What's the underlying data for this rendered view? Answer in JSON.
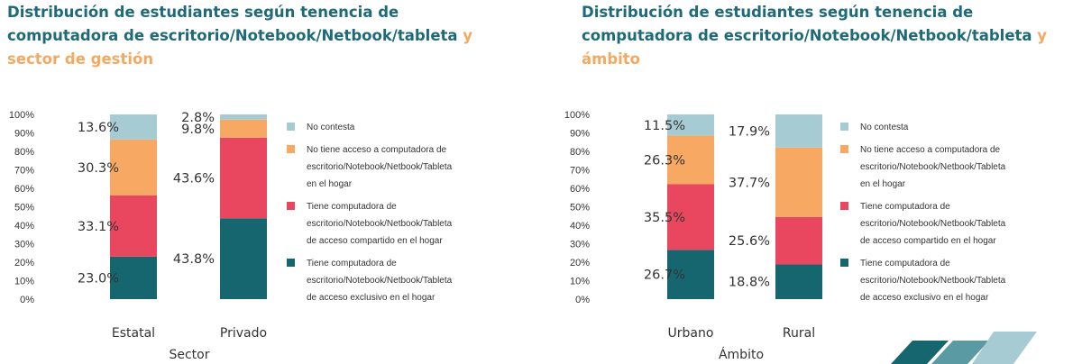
{
  "colors": {
    "no_contesta": "#a7cbd2",
    "no_tiene": "#f7a963",
    "compartido": "#e9475f",
    "exclusivo": "#16666f"
  },
  "chart_data": [
    {
      "type": "bar",
      "stacked": true,
      "title_main": "Distribución de estudiantes según tenencia de computadora de escritorio/Notebook/Netbook/tableta",
      "title_accent": "y sector de gestión",
      "xlabel": "Sector",
      "ylabel": "",
      "ylim": [
        0,
        100
      ],
      "yticks": [
        "0%",
        "10%",
        "20%",
        "30%",
        "40%",
        "50%",
        "60%",
        "70%",
        "80%",
        "90%",
        "100%"
      ],
      "categories": [
        "Estatal",
        "Privado"
      ],
      "series": [
        {
          "name": "Tiene computadora de escritorio/Notebook/Netbook/Tableta de acceso exclusivo en el hogar",
          "key": "exclusivo",
          "values": [
            23.0,
            43.8
          ],
          "labels": [
            "23.0%",
            "43.8%"
          ]
        },
        {
          "name": "Tiene computadora de escritorio/Notebook/Netbook/Tableta de acceso compartido en el hogar",
          "key": "compartido",
          "values": [
            33.1,
            43.6
          ],
          "labels": [
            "33.1%",
            "43.6%"
          ]
        },
        {
          "name": "No tiene acceso a computadora de escritorio/Notebook/Netbook/Tableta en el hogar",
          "key": "no_tiene",
          "values": [
            30.3,
            9.8
          ],
          "labels": [
            "30.3%",
            "9.8%"
          ]
        },
        {
          "name": "No contesta",
          "key": "no_contesta",
          "values": [
            13.6,
            2.8
          ],
          "labels": [
            "13.6%",
            "2.8%"
          ]
        }
      ],
      "legend": [
        {
          "key": "no_contesta",
          "lines": [
            "No contesta"
          ]
        },
        {
          "key": "no_tiene",
          "lines": [
            "No tiene acceso a computadora de",
            "escritorio/Notebook/Netbook/Tableta",
            "en el hogar"
          ]
        },
        {
          "key": "compartido",
          "lines": [
            "Tiene computadora de",
            "escritorio/Notebook/Netbook/Tableta",
            "de acceso compartido en el hogar"
          ]
        },
        {
          "key": "exclusivo",
          "lines": [
            "Tiene computadora de",
            "escritorio/Notebook/Netbook/Tableta",
            "de acceso exclusivo en el hogar"
          ]
        }
      ],
      "legend_placement": "right",
      "grid": false
    },
    {
      "type": "bar",
      "stacked": true,
      "title_main": "Distribución de estudiantes según tenencia de computadora de escritorio/Notebook/Netbook/tableta",
      "title_accent": "y ámbito",
      "xlabel": "Ámbito",
      "ylabel": "",
      "ylim": [
        0,
        100
      ],
      "yticks": [
        "0%",
        "10%",
        "20%",
        "30%",
        "40%",
        "50%",
        "60%",
        "70%",
        "80%",
        "90%",
        "100%"
      ],
      "categories": [
        "Urbano",
        "Rural"
      ],
      "series": [
        {
          "name": "Tiene computadora de escritorio/Notebook/Netbook/Tableta de acceso exclusivo en el hogar",
          "key": "exclusivo",
          "values": [
            26.7,
            18.8
          ],
          "labels": [
            "26.7%",
            "18.8%"
          ]
        },
        {
          "name": "Tiene computadora de escritorio/Notebook/Netbook/Tableta de acceso compartido en el hogar",
          "key": "compartido",
          "values": [
            35.5,
            25.6
          ],
          "labels": [
            "35.5%",
            "25.6%"
          ]
        },
        {
          "name": "No tiene acceso a computadora de escritorio/Notebook/Netbook/Tableta en el hogar",
          "key": "no_tiene",
          "values": [
            26.3,
            37.7
          ],
          "labels": [
            "26.3%",
            "37.7%"
          ]
        },
        {
          "name": "No contesta",
          "key": "no_contesta",
          "values": [
            11.5,
            17.9
          ],
          "labels": [
            "11.5%",
            "17.9%"
          ]
        }
      ],
      "legend": [
        {
          "key": "no_contesta",
          "lines": [
            "No contesta"
          ]
        },
        {
          "key": "no_tiene",
          "lines": [
            "No tiene acceso a computadora de",
            "escritorio/Notebook/Netbook/Tableta",
            "en el hogar"
          ]
        },
        {
          "key": "compartido",
          "lines": [
            "Tiene computadora de",
            "escritorio/Notebook/Netbook/Tableta",
            "de acceso compartido en el hogar"
          ]
        },
        {
          "key": "exclusivo",
          "lines": [
            "Tiene computadora de",
            "escritorio/Notebook/Netbook/Tableta",
            "de acceso exclusivo en el hogar"
          ]
        }
      ],
      "legend_placement": "right",
      "grid": false
    }
  ]
}
